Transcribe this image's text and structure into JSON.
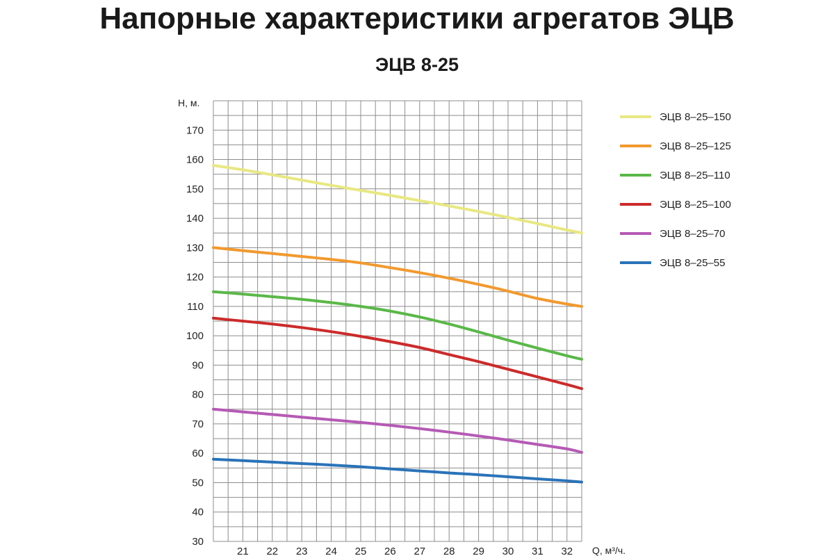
{
  "page": {
    "title": "Напорные характеристики агрегатов ЭЦВ"
  },
  "chart_data": {
    "type": "line",
    "title": "ЭЦВ 8-25",
    "ylabel": "H, м.",
    "xlabel": "Q, м³/ч.",
    "xlim": [
      20,
      32.5
    ],
    "ylim": [
      30,
      180
    ],
    "xticks": [
      21,
      22,
      23,
      24,
      25,
      26,
      27,
      28,
      29,
      30,
      31,
      32
    ],
    "yticks": [
      30,
      40,
      50,
      60,
      70,
      80,
      90,
      100,
      110,
      120,
      130,
      140,
      150,
      160,
      170
    ],
    "grid": true,
    "legend_position": "right",
    "x": [
      20,
      21,
      22,
      23,
      24,
      25,
      26,
      27,
      28,
      29,
      30,
      31,
      32,
      32.5
    ],
    "series": [
      {
        "name": "ЭЦВ 8–25–150",
        "color": "#e8e882",
        "values": [
          158,
          156.5,
          154.8,
          153,
          151.2,
          149.5,
          147.8,
          146,
          144.2,
          142.3,
          140.3,
          138.2,
          136,
          135
        ]
      },
      {
        "name": "ЭЦВ 8–25–125",
        "color": "#f2992e",
        "values": [
          130,
          129,
          128,
          127,
          126,
          124.8,
          123.2,
          121.5,
          119.6,
          117.5,
          115.2,
          112.7,
          110.8,
          110
        ]
      },
      {
        "name": "ЭЦВ 8–25–110",
        "color": "#5ab848",
        "values": [
          115,
          114.2,
          113.3,
          112.4,
          111.3,
          110,
          108.4,
          106.4,
          104,
          101.3,
          98.5,
          95.8,
          93.2,
          92
        ]
      },
      {
        "name": "ЭЦВ 8–25–100",
        "color": "#cc2a2a",
        "values": [
          106,
          105,
          104,
          102.8,
          101.4,
          99.8,
          98,
          96,
          93.6,
          91.2,
          88.6,
          86,
          83.4,
          82
        ]
      },
      {
        "name": "ЭЦВ 8–25–70",
        "color": "#b55ab5",
        "values": [
          75,
          74.1,
          73.2,
          72.3,
          71.4,
          70.5,
          69.5,
          68.4,
          67.2,
          65.9,
          64.5,
          63,
          61.5,
          60.3
        ]
      },
      {
        "name": "ЭЦВ 8–25–55",
        "color": "#2a73b8",
        "values": [
          58,
          57.5,
          57,
          56.5,
          56,
          55.4,
          54.7,
          54,
          53.3,
          52.7,
          52,
          51.3,
          50.6,
          50.2
        ]
      }
    ]
  }
}
